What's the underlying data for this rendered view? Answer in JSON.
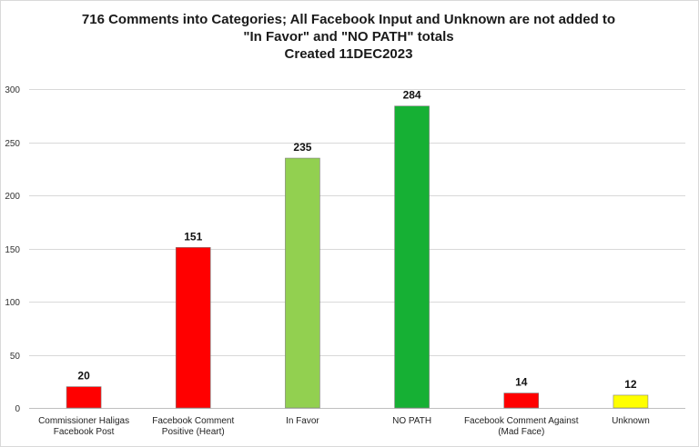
{
  "chart_data": {
    "type": "bar",
    "title_lines": [
      "716 Comments into Categories; All Facebook Input and Unknown are not added to",
      "\"In Favor\" and \"NO PATH\" totals",
      "Created 11DEC2023"
    ],
    "categories": [
      [
        "Commissioner Haligas",
        "Facebook Post"
      ],
      [
        "Facebook Comment",
        "Positive (Heart)"
      ],
      [
        "In Favor"
      ],
      [
        "NO PATH"
      ],
      [
        "Facebook Comment Against",
        "(Mad Face)"
      ],
      [
        "Unknown"
      ]
    ],
    "values": [
      20,
      151,
      235,
      284,
      14,
      12
    ],
    "data_labels": [
      "20",
      "151",
      "235",
      "284",
      "14",
      "12"
    ],
    "colors": [
      "#ff0000",
      "#ff0000",
      "#92d050",
      "#16b034",
      "#ff0000",
      "#ffff00"
    ],
    "ylim": [
      0,
      300
    ],
    "yticks": [
      "0",
      "50",
      "100",
      "150",
      "200",
      "250",
      "300"
    ],
    "ytick_values": [
      0,
      50,
      100,
      150,
      200,
      250,
      300
    ],
    "grid": true,
    "legend": "none",
    "gridline_color": "#d9d9d9"
  }
}
